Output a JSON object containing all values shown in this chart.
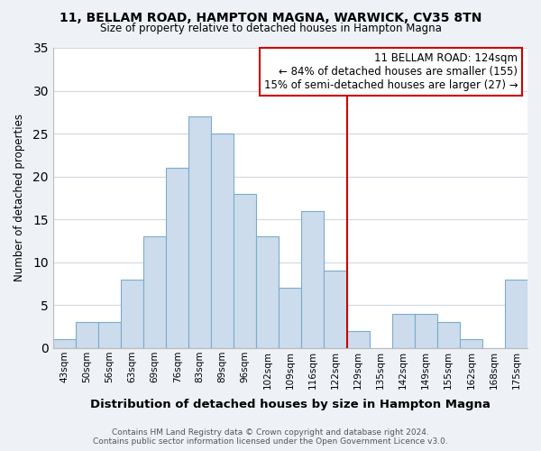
{
  "title": "11, BELLAM ROAD, HAMPTON MAGNA, WARWICK, CV35 8TN",
  "subtitle": "Size of property relative to detached houses in Hampton Magna",
  "xlabel": "Distribution of detached houses by size in Hampton Magna",
  "ylabel": "Number of detached properties",
  "categories": [
    "43sqm",
    "50sqm",
    "56sqm",
    "63sqm",
    "69sqm",
    "76sqm",
    "83sqm",
    "89sqm",
    "96sqm",
    "102sqm",
    "109sqm",
    "116sqm",
    "122sqm",
    "129sqm",
    "135sqm",
    "142sqm",
    "149sqm",
    "155sqm",
    "162sqm",
    "168sqm",
    "175sqm"
  ],
  "values": [
    1,
    3,
    3,
    8,
    13,
    21,
    27,
    25,
    18,
    13,
    7,
    16,
    9,
    2,
    0,
    4,
    4,
    3,
    1,
    0,
    8
  ],
  "bar_color": "#ccdcec",
  "bar_edge_color": "#7aaccc",
  "grid_color": "#d0d8e0",
  "bg_color": "#eef2f7",
  "plot_bg_color": "#ffffff",
  "vline_x_index": 12,
  "vline_color": "#cc0000",
  "ylim": [
    0,
    35
  ],
  "yticks": [
    0,
    5,
    10,
    15,
    20,
    25,
    30,
    35
  ],
  "annotation_title": "11 BELLAM ROAD: 124sqm",
  "annotation_line1": "← 84% of detached houses are smaller (155)",
  "annotation_line2": "15% of semi-detached houses are larger (27) →",
  "annotation_box_color": "#ffffff",
  "annotation_border_color": "#cc0000",
  "footer1": "Contains HM Land Registry data © Crown copyright and database right 2024.",
  "footer2": "Contains public sector information licensed under the Open Government Licence v3.0."
}
